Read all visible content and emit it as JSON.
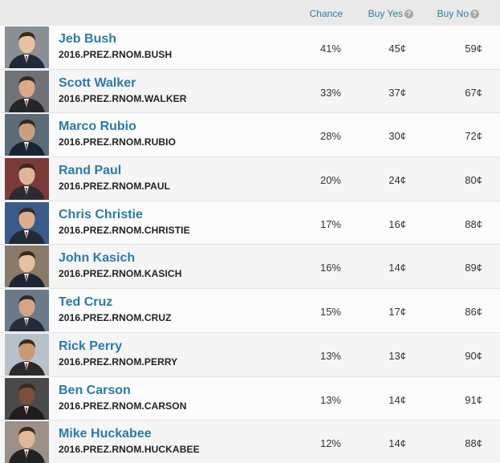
{
  "columns": {
    "chance": "Chance",
    "buy_yes": "Buy Yes",
    "buy_no": "Buy No"
  },
  "colors": {
    "accent": "#2b7ba4",
    "header_bg": "#e9e9e9"
  },
  "rows": [
    {
      "name": "Jeb Bush",
      "ticker": "2016.PREZ.RNOM.BUSH",
      "chance": "41%",
      "buy_yes": "45¢",
      "buy_no": "59¢"
    },
    {
      "name": "Scott Walker",
      "ticker": "2016.PREZ.RNOM.WALKER",
      "chance": "33%",
      "buy_yes": "37¢",
      "buy_no": "67¢"
    },
    {
      "name": "Marco Rubio",
      "ticker": "2016.PREZ.RNOM.RUBIO",
      "chance": "28%",
      "buy_yes": "30¢",
      "buy_no": "72¢"
    },
    {
      "name": "Rand Paul",
      "ticker": "2016.PREZ.RNOM.PAUL",
      "chance": "20%",
      "buy_yes": "24¢",
      "buy_no": "80¢"
    },
    {
      "name": "Chris Christie",
      "ticker": "2016.PREZ.RNOM.CHRISTIE",
      "chance": "17%",
      "buy_yes": "16¢",
      "buy_no": "88¢"
    },
    {
      "name": "John Kasich",
      "ticker": "2016.PREZ.RNOM.KASICH",
      "chance": "16%",
      "buy_yes": "14¢",
      "buy_no": "89¢"
    },
    {
      "name": "Ted Cruz",
      "ticker": "2016.PREZ.RNOM.CRUZ",
      "chance": "15%",
      "buy_yes": "17¢",
      "buy_no": "86¢"
    },
    {
      "name": "Rick Perry",
      "ticker": "2016.PREZ.RNOM.PERRY",
      "chance": "13%",
      "buy_yes": "13¢",
      "buy_no": "90¢"
    },
    {
      "name": "Ben Carson",
      "ticker": "2016.PREZ.RNOM.CARSON",
      "chance": "13%",
      "buy_yes": "14¢",
      "buy_no": "91¢"
    },
    {
      "name": "Mike Huckabee",
      "ticker": "2016.PREZ.RNOM.HUCKABEE",
      "chance": "12%",
      "buy_yes": "14¢",
      "buy_no": "88¢"
    }
  ]
}
